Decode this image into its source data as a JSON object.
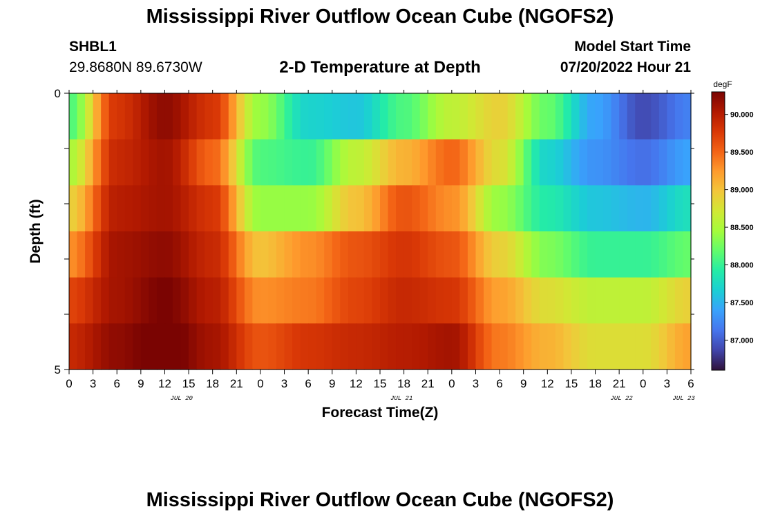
{
  "header": {
    "title": "Mississippi River Outflow Ocean Cube (NGOFS2)",
    "station_id": "SHBL1",
    "coords": "29.8680N  89.6730W",
    "model_start_label": "Model Start Time",
    "model_start_value": "07/20/2022 Hour 21"
  },
  "footer": {
    "title": "Mississippi River Outflow Ocean Cube (NGOFS2)"
  },
  "chart_data": {
    "type": "heatmap",
    "title": "2-D Temperature at Depth",
    "xlabel": "Forecast Time(Z)",
    "ylabel": "Depth (ft)",
    "x_tick_labels": [
      "0",
      "3",
      "6",
      "9",
      "12",
      "15",
      "18",
      "21",
      "0",
      "3",
      "6",
      "9",
      "12",
      "15",
      "18",
      "21",
      "0",
      "3",
      "6",
      "9",
      "12",
      "15",
      "18",
      "21",
      "0",
      "3",
      "6"
    ],
    "date_labels": [
      "JUL 20",
      "JUL 21",
      "JUL 22",
      "JUL 23"
    ],
    "y_tick_labels": [
      "0",
      "5"
    ],
    "ylim": [
      0,
      5
    ],
    "colorbar": {
      "unit": "degF",
      "range": [
        86.6,
        90.3
      ],
      "tick_labels": [
        "87.000",
        "87.500",
        "88.000",
        "88.500",
        "89.000",
        "89.500",
        "90.000"
      ],
      "tick_values": [
        87.0,
        87.5,
        88.0,
        88.5,
        89.0,
        89.5,
        90.0
      ],
      "stops": [
        "#30123b",
        "#4145ab",
        "#4675ed",
        "#39a2fc",
        "#1bcfd4",
        "#24eca6",
        "#61fc6c",
        "#a4fc3b",
        "#d1e834",
        "#f3c63a",
        "#fe9b2d",
        "#f36315",
        "#d93806",
        "#b11901",
        "#7a0402"
      ]
    },
    "hours": [
      0,
      6,
      12,
      18,
      24,
      30,
      36,
      42,
      48,
      54,
      60,
      66,
      72,
      78
    ],
    "rows": [
      {
        "depth_ft": 0,
        "values": [
          88.1,
          89.8,
          90.2,
          89.8,
          88.4,
          87.7,
          87.6,
          88.1,
          88.6,
          88.9,
          88.2,
          87.4,
          86.9,
          87.2
        ]
      },
      {
        "depth_ft": 1,
        "values": [
          88.5,
          89.9,
          90.1,
          89.5,
          88.1,
          88.0,
          88.6,
          89.1,
          89.5,
          88.8,
          87.7,
          87.3,
          87.1,
          87.4
        ]
      },
      {
        "depth_ft": 2,
        "values": [
          88.9,
          90.0,
          90.1,
          89.8,
          88.4,
          88.4,
          89.0,
          89.6,
          89.3,
          88.4,
          87.9,
          87.6,
          87.5,
          87.8
        ]
      },
      {
        "depth_ft": 3,
        "values": [
          89.3,
          90.1,
          90.2,
          89.9,
          89.0,
          89.3,
          89.6,
          89.8,
          89.6,
          88.9,
          88.3,
          88.0,
          88.0,
          88.2
        ]
      },
      {
        "depth_ft": 4,
        "values": [
          89.7,
          90.1,
          90.3,
          90.0,
          89.3,
          89.4,
          89.7,
          89.9,
          89.8,
          89.2,
          88.8,
          88.6,
          88.6,
          88.9
        ]
      },
      {
        "depth_ft": 5,
        "values": [
          89.9,
          90.2,
          90.4,
          90.1,
          89.6,
          89.8,
          89.9,
          90.0,
          90.1,
          89.4,
          89.1,
          88.8,
          88.8,
          89.2
        ]
      }
    ]
  }
}
